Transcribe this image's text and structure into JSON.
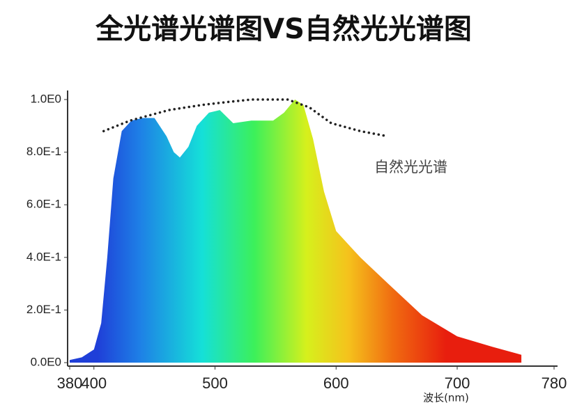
{
  "chart_data": {
    "type": "area",
    "title": "全光谱光谱图VS自然光光谱图",
    "x_label": "波长(nm)",
    "series": [
      {
        "color": "spectrum",
        "x": [
          380,
          390,
          400,
          406,
          411,
          416,
          423,
          431,
          440,
          450,
          460,
          466,
          471,
          478,
          485,
          495,
          504,
          515,
          530,
          548,
          557,
          566,
          573,
          581,
          590,
          600,
          620,
          643,
          671,
          700,
          729,
          753
        ],
        "values": [
          0.01,
          0.02,
          0.05,
          0.15,
          0.4,
          0.7,
          0.88,
          0.92,
          0.93,
          0.93,
          0.86,
          0.8,
          0.78,
          0.82,
          0.9,
          0.95,
          0.96,
          0.91,
          0.92,
          0.92,
          0.95,
          1.0,
          0.98,
          0.85,
          0.65,
          0.5,
          0.4,
          0.3,
          0.18,
          0.1,
          0.06,
          0.03
        ]
      },
      {
        "name": "自然光光谱",
        "color": "#222222",
        "x": [
          408,
          430,
          462,
          490,
          509,
          530,
          545,
          560,
          578,
          596,
          620,
          643
        ],
        "values": [
          0.88,
          0.92,
          0.96,
          0.98,
          0.99,
          1.0,
          1.0,
          1.0,
          0.97,
          0.91,
          0.88,
          0.86
        ]
      }
    ],
    "xlim": [
      380,
      780
    ],
    "xticks": [
      380,
      400,
      500,
      600,
      700,
      780
    ],
    "ylim": [
      0,
      1
    ],
    "yticks": [
      {
        "value": 0,
        "label": "0.0E0"
      },
      {
        "value": 0.2,
        "label": "2.0E-1"
      },
      {
        "value": 0.4,
        "label": "4.0E-1"
      },
      {
        "value": 0.6,
        "label": "6.0E-1"
      },
      {
        "value": 0.8,
        "label": "8.0E-1"
      },
      {
        "value": 1.0,
        "label": "1.0E0"
      }
    ]
  }
}
